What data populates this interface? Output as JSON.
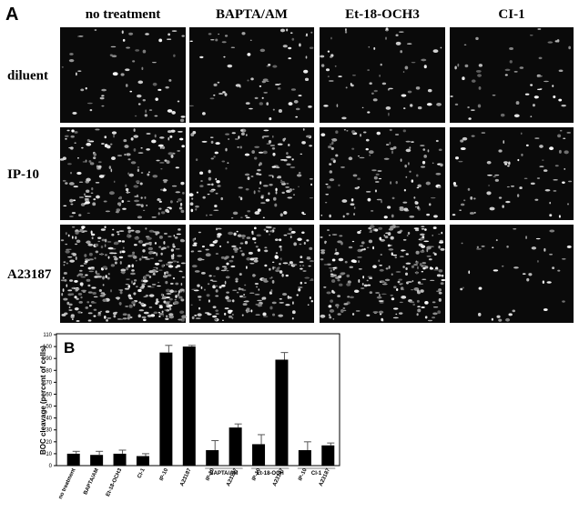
{
  "panel_a": {
    "label": "A",
    "columns": [
      "no treatment",
      "BAPTA/AM",
      "Et-18-OCH3",
      "CI-1"
    ],
    "rows": [
      "diluent",
      "IP-10",
      "A23187"
    ]
  },
  "chart_data": {
    "type": "bar",
    "panel_label": "B",
    "y_label": "BOC cleavage (percent of cells)",
    "categories": [
      "no treatment",
      "BAPTA/AM",
      "Et-18-OCH3",
      "CI-1",
      "IP-10",
      "A23187",
      "IP-10",
      "A23187",
      "IP-10",
      "A23187",
      "IP-10",
      "A23187"
    ],
    "group_labels": [
      "BAPTA/AM",
      "Et-18-OCH",
      "CI-1"
    ],
    "values": [
      10,
      9,
      10,
      8,
      95,
      100,
      13,
      32,
      18,
      89,
      13,
      17
    ],
    "errors": [
      2,
      3,
      3,
      2,
      6,
      1,
      8,
      3,
      8,
      6,
      7,
      2
    ],
    "color": "#000000",
    "ylim": [
      0,
      110
    ],
    "yticks": [
      0,
      10,
      20,
      30,
      40,
      50,
      60,
      70,
      80,
      90,
      100,
      110
    ]
  }
}
